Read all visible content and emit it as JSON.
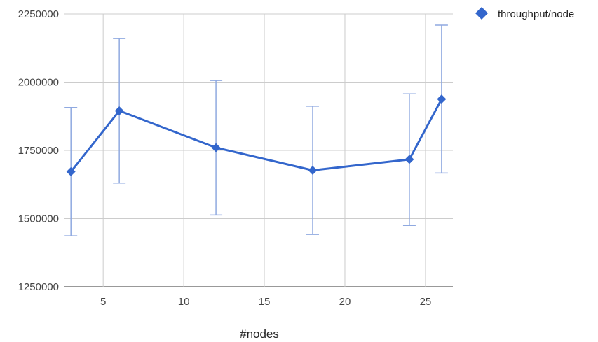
{
  "chart_data": {
    "type": "line",
    "xlabel": "#nodes",
    "ylabel": "",
    "xlim": [
      2.6,
      26.7
    ],
    "ylim": [
      1250000,
      2250000
    ],
    "x_ticks": [
      5,
      10,
      15,
      20,
      25
    ],
    "y_ticks": [
      1250000,
      1500000,
      1750000,
      2000000,
      2250000
    ],
    "grid": true,
    "legend_position": "top-right",
    "series": [
      {
        "name": "throughput/node",
        "color": "#3366cc",
        "error_color": "#8fa9e0",
        "marker": "diamond",
        "points": [
          {
            "x": 3,
            "y": 1672000,
            "low": 1437000,
            "high": 1907000
          },
          {
            "x": 6,
            "y": 1895000,
            "low": 1630000,
            "high": 2160000
          },
          {
            "x": 12,
            "y": 1760000,
            "low": 1513000,
            "high": 2006000
          },
          {
            "x": 18,
            "y": 1677000,
            "low": 1442000,
            "high": 1912000
          },
          {
            "x": 24,
            "y": 1717000,
            "low": 1475000,
            "high": 1957000
          },
          {
            "x": 26,
            "y": 1938000,
            "low": 1667000,
            "high": 2209000
          }
        ]
      }
    ]
  }
}
